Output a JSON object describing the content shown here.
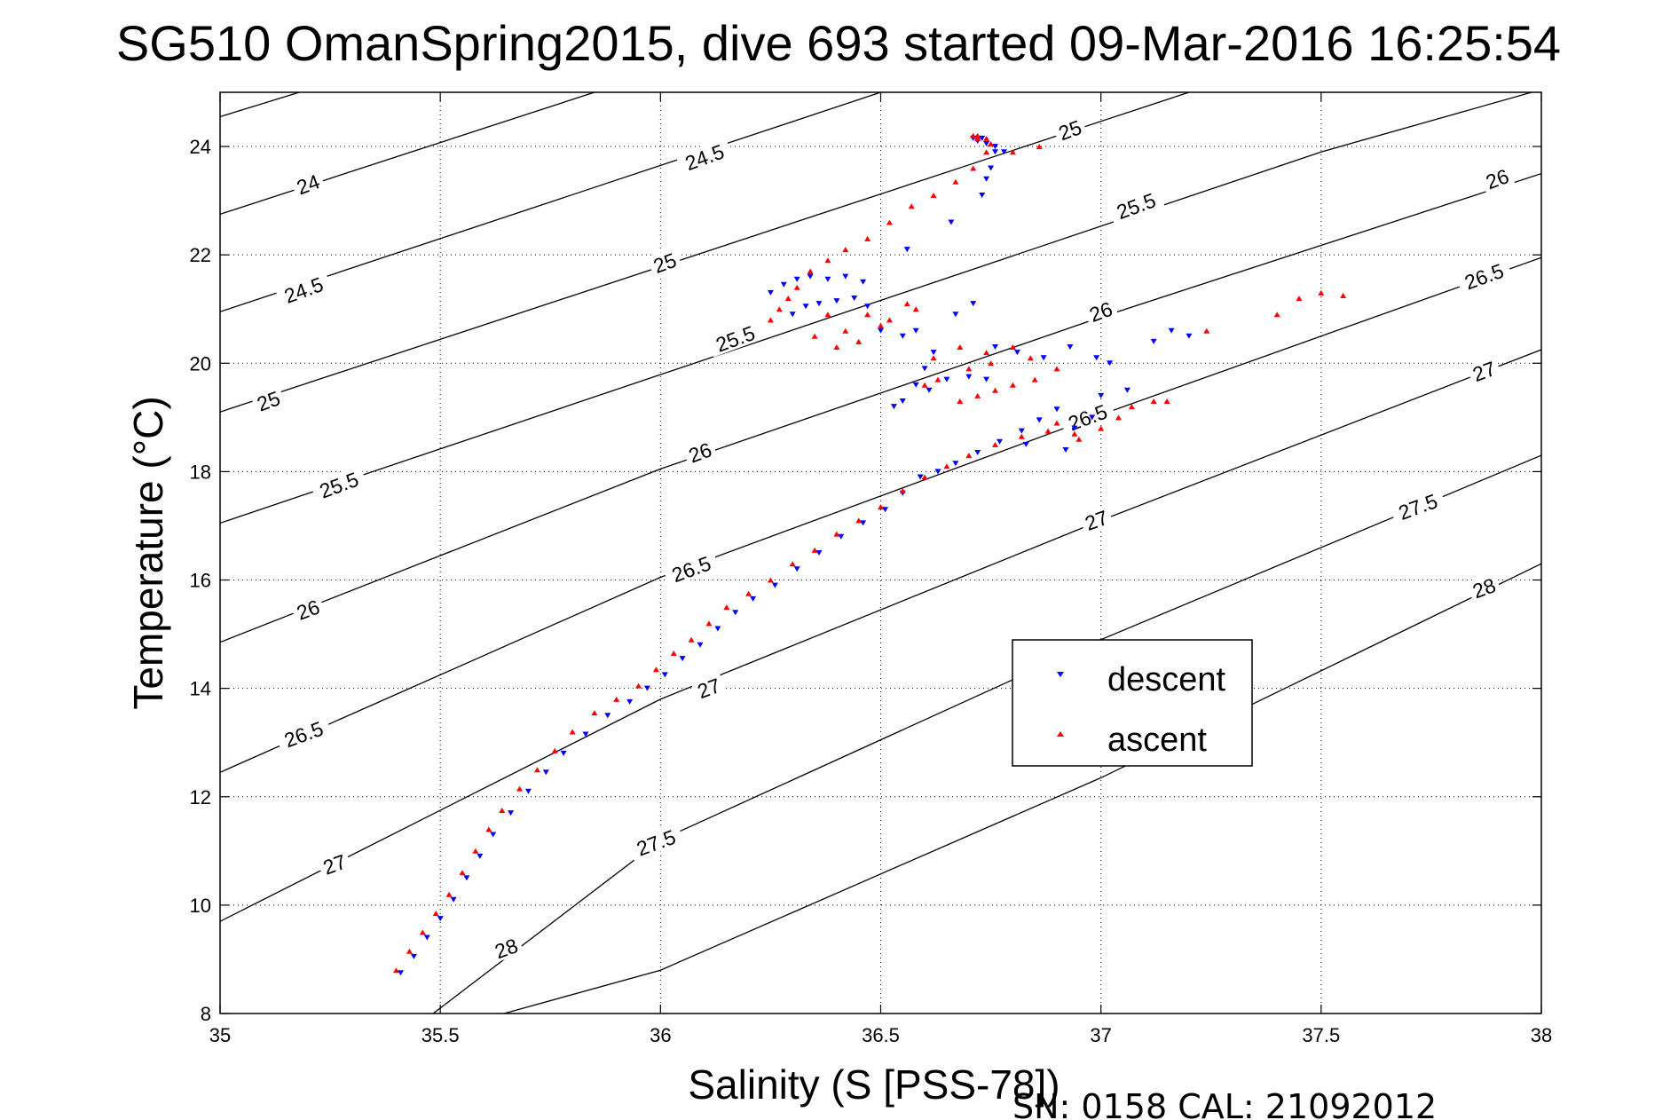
{
  "chart_data": {
    "type": "scatter",
    "title": "SG510 OmanSpring2015, dive 693 started 09-Mar-2016 16:25:54",
    "xlabel": "Salinity (S [PSS-78])",
    "ylabel": "Temperature (°C)",
    "xlim": [
      35,
      38
    ],
    "ylim": [
      8,
      25
    ],
    "xticks": [
      35,
      35.5,
      36,
      36.5,
      37,
      37.5,
      38
    ],
    "xtick_labels": [
      "35",
      "35.5",
      "36",
      "36.5",
      "37",
      "37.5",
      "38"
    ],
    "yticks": [
      8,
      10,
      12,
      14,
      16,
      18,
      20,
      22,
      24
    ],
    "ytick_labels": [
      "8",
      "10",
      "12",
      "14",
      "16",
      "18",
      "20",
      "22",
      "24"
    ],
    "grid": true,
    "legend_position": "center-right",
    "footer": "SN: 0158  CAL: 21092012",
    "colors": {
      "descent": "#0000ff",
      "ascent": "#ff0000",
      "contour": "#000000"
    },
    "density_contours": [
      {
        "label": "24",
        "points": [
          [
            35.0,
            24.55
          ],
          [
            35.2,
            25.05
          ]
        ]
      },
      {
        "label": "24",
        "points": [
          [
            35.0,
            22.75
          ],
          [
            35.85,
            25.0
          ]
        ]
      },
      {
        "label": "24.5",
        "points": [
          [
            35.0,
            20.95
          ],
          [
            36.5,
            25.0
          ]
        ]
      },
      {
        "label": "25",
        "points": [
          [
            35.0,
            19.1
          ],
          [
            37.2,
            25.0
          ]
        ]
      },
      {
        "label": "25.5",
        "points": [
          [
            35.0,
            17.05
          ],
          [
            37.5,
            23.9
          ],
          [
            38.0,
            25.05
          ]
        ]
      },
      {
        "label": "26",
        "points": [
          [
            35.0,
            14.85
          ],
          [
            36.0,
            18.05
          ],
          [
            37.0,
            20.85
          ],
          [
            38.0,
            23.5
          ]
        ]
      },
      {
        "label": "26.5",
        "points": [
          [
            35.0,
            12.45
          ],
          [
            36.0,
            16.05
          ],
          [
            37.0,
            19.05
          ],
          [
            38.0,
            21.95
          ]
        ]
      },
      {
        "label": "27",
        "points": [
          [
            35.0,
            9.7
          ],
          [
            36.0,
            13.8
          ],
          [
            37.0,
            17.1
          ],
          [
            38.0,
            20.25
          ]
        ]
      },
      {
        "label": "27.5",
        "points": [
          [
            35.0,
            5.0
          ],
          [
            36.0,
            11.2
          ],
          [
            37.0,
            14.9
          ],
          [
            38.0,
            18.3
          ]
        ]
      },
      {
        "label": "28",
        "points": [
          [
            35.2,
            7.0
          ],
          [
            36.0,
            8.8
          ],
          [
            37.0,
            12.35
          ],
          [
            38.0,
            16.3
          ]
        ]
      }
    ],
    "contour_labels": [
      {
        "text": "24",
        "x": 35.2,
        "y": 23.3
      },
      {
        "text": "24.5",
        "x": 35.19,
        "y": 21.35
      },
      {
        "text": "24.5",
        "x": 36.1,
        "y": 23.8
      },
      {
        "text": "25",
        "x": 35.11,
        "y": 19.3
      },
      {
        "text": "25",
        "x": 36.01,
        "y": 21.85
      },
      {
        "text": "25",
        "x": 36.93,
        "y": 24.3
      },
      {
        "text": "25.5",
        "x": 35.27,
        "y": 17.75
      },
      {
        "text": "25.5",
        "x": 36.17,
        "y": 20.45
      },
      {
        "text": "25.5",
        "x": 37.08,
        "y": 22.9
      },
      {
        "text": "26",
        "x": 35.2,
        "y": 15.45
      },
      {
        "text": "26",
        "x": 36.09,
        "y": 18.35
      },
      {
        "text": "26",
        "x": 37.0,
        "y": 20.95
      },
      {
        "text": "26",
        "x": 37.9,
        "y": 23.4
      },
      {
        "text": "26.5",
        "x": 35.19,
        "y": 13.15
      },
      {
        "text": "26.5",
        "x": 36.07,
        "y": 16.2
      },
      {
        "text": "26.5",
        "x": 36.97,
        "y": 19.0
      },
      {
        "text": "26.5",
        "x": 37.87,
        "y": 21.6
      },
      {
        "text": "27",
        "x": 35.26,
        "y": 10.75
      },
      {
        "text": "27",
        "x": 36.11,
        "y": 14.0
      },
      {
        "text": "27",
        "x": 36.99,
        "y": 17.1
      },
      {
        "text": "27",
        "x": 37.87,
        "y": 19.85
      },
      {
        "text": "27.5",
        "x": 35.99,
        "y": 11.15
      },
      {
        "text": "27.5",
        "x": 37.72,
        "y": 17.35
      },
      {
        "text": "28",
        "x": 35.65,
        "y": 9.2
      },
      {
        "text": "28",
        "x": 37.87,
        "y": 15.85
      }
    ],
    "series": [
      {
        "name": "descent",
        "marker": "triangle-down",
        "color": "#0000ff",
        "x": [
          35.41,
          35.44,
          35.47,
          35.5,
          35.53,
          35.56,
          35.59,
          35.62,
          35.66,
          35.7,
          35.74,
          35.78,
          35.83,
          35.88,
          35.93,
          35.97,
          36.01,
          36.05,
          36.09,
          36.13,
          36.17,
          36.21,
          36.26,
          36.31,
          36.36,
          36.41,
          36.46,
          36.51,
          36.55,
          36.59,
          36.63,
          36.67,
          36.72,
          36.77,
          36.82,
          36.86,
          36.9,
          36.6,
          36.58,
          36.55,
          36.53,
          36.61,
          36.65,
          36.7,
          36.74,
          36.3,
          36.33,
          36.36,
          36.4,
          36.44,
          36.47,
          36.5,
          36.25,
          36.28,
          36.31,
          36.34,
          36.38,
          36.42,
          36.46,
          36.56,
          36.66,
          36.73,
          36.74,
          36.75,
          36.76,
          36.73,
          36.71,
          36.72,
          36.74,
          36.76,
          36.78,
          36.55,
          36.58,
          36.62,
          36.67,
          36.71,
          36.76,
          36.81,
          36.87,
          36.93,
          36.99,
          37.02,
          37.12,
          37.16,
          37.2,
          37.06,
          36.83,
          36.92,
          36.94,
          36.98,
          37.0
        ],
        "y": [
          8.75,
          9.05,
          9.4,
          9.75,
          10.1,
          10.5,
          10.9,
          11.3,
          11.7,
          12.1,
          12.45,
          12.8,
          13.15,
          13.5,
          13.75,
          14.0,
          14.25,
          14.55,
          14.8,
          15.1,
          15.4,
          15.65,
          15.9,
          16.2,
          16.5,
          16.8,
          17.05,
          17.3,
          17.6,
          17.9,
          18.0,
          18.15,
          18.35,
          18.55,
          18.75,
          18.95,
          19.15,
          19.9,
          19.6,
          19.3,
          19.2,
          19.5,
          19.7,
          19.75,
          19.7,
          20.9,
          21.05,
          21.1,
          21.15,
          21.2,
          21.05,
          20.6,
          21.3,
          21.45,
          21.55,
          21.6,
          21.55,
          21.6,
          21.5,
          22.1,
          22.6,
          23.1,
          23.4,
          23.6,
          23.9,
          24.15,
          24.15,
          24.1,
          24.05,
          24.0,
          23.9,
          20.5,
          20.6,
          20.2,
          20.9,
          21.1,
          20.3,
          20.2,
          20.1,
          20.3,
          20.1,
          20.0,
          20.4,
          20.6,
          20.5,
          19.5,
          18.5,
          18.4,
          18.8,
          19.0,
          19.4
        ]
      },
      {
        "name": "ascent",
        "marker": "triangle-up",
        "color": "#ff0000",
        "x": [
          35.4,
          35.43,
          35.46,
          35.49,
          35.52,
          35.55,
          35.58,
          35.61,
          35.64,
          35.68,
          35.72,
          35.76,
          35.8,
          35.85,
          35.9,
          35.95,
          35.99,
          36.03,
          36.07,
          36.11,
          36.15,
          36.2,
          36.25,
          36.3,
          36.35,
          36.4,
          36.45,
          36.5,
          36.55,
          36.6,
          36.65,
          36.7,
          36.76,
          36.82,
          36.88,
          36.94,
          37.0,
          37.04,
          37.07,
          37.12,
          36.62,
          36.68,
          36.74,
          36.8,
          36.84,
          36.9,
          36.85,
          36.8,
          36.76,
          36.72,
          36.68,
          36.6,
          36.63,
          36.7,
          36.75,
          36.25,
          36.27,
          36.29,
          36.31,
          36.34,
          36.38,
          36.42,
          36.47,
          36.52,
          36.57,
          36.62,
          36.67,
          36.71,
          36.74,
          36.72,
          36.71,
          36.72,
          36.74,
          36.75,
          36.8,
          36.86,
          36.35,
          36.4,
          36.45,
          36.5,
          36.56,
          36.38,
          36.42,
          36.47,
          36.52,
          36.58,
          37.15,
          37.24,
          37.4,
          37.45,
          37.5,
          37.55,
          36.9,
          36.95
        ],
        "y": [
          8.8,
          9.15,
          9.5,
          9.85,
          10.2,
          10.6,
          11.0,
          11.4,
          11.75,
          12.15,
          12.5,
          12.85,
          13.2,
          13.55,
          13.8,
          14.05,
          14.35,
          14.65,
          14.9,
          15.2,
          15.5,
          15.75,
          16.0,
          16.3,
          16.55,
          16.85,
          17.1,
          17.35,
          17.65,
          17.9,
          18.1,
          18.3,
          18.5,
          18.65,
          18.75,
          18.7,
          18.8,
          19.0,
          19.2,
          19.3,
          20.1,
          20.3,
          20.2,
          20.3,
          20.1,
          19.9,
          19.7,
          19.6,
          19.5,
          19.4,
          19.3,
          19.6,
          19.7,
          19.9,
          20.0,
          20.8,
          21.0,
          21.2,
          21.4,
          21.7,
          21.9,
          22.1,
          22.3,
          22.6,
          22.9,
          23.1,
          23.35,
          23.6,
          23.9,
          24.15,
          24.2,
          24.2,
          24.15,
          24.05,
          23.9,
          24.0,
          20.5,
          20.3,
          20.4,
          20.7,
          21.1,
          20.9,
          20.6,
          20.9,
          20.8,
          21.0,
          19.3,
          20.6,
          20.9,
          21.2,
          21.3,
          21.25,
          18.9,
          18.6
        ]
      }
    ]
  }
}
